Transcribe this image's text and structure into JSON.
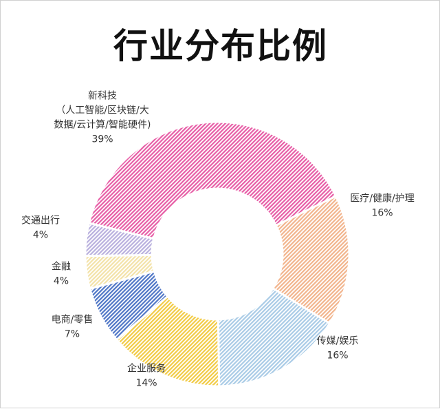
{
  "chart_data": {
    "type": "pie",
    "title": "行业分布比例",
    "donut": true,
    "slices": [
      {
        "label_lines": [
          "医疗/健康/护理"
        ],
        "percent_label": "16%",
        "value": 16,
        "color": "#f2b48c",
        "pattern": "hatch"
      },
      {
        "label_lines": [
          "传媒/娱乐"
        ],
        "percent_label": "16%",
        "value": 16,
        "color": "#a9cbe6",
        "pattern": "hatch"
      },
      {
        "label_lines": [
          "企业服务"
        ],
        "percent_label": "14%",
        "value": 14,
        "color": "#f2cb45",
        "pattern": "hatch"
      },
      {
        "label_lines": [
          "电商/零售"
        ],
        "percent_label": "7%",
        "value": 7,
        "color": "#4f76c6",
        "pattern": "hatch"
      },
      {
        "label_lines": [
          "金融"
        ],
        "percent_label": "4%",
        "value": 4,
        "color": "#f3e2a8",
        "pattern": "hatch"
      },
      {
        "label_lines": [
          "交通出行"
        ],
        "percent_label": "4%",
        "value": 4,
        "color": "#b9b0de",
        "pattern": "hatch"
      },
      {
        "label_lines": [
          "新科技",
          "（人工智能/区块链/大",
          "数据/云计算/智能硬件)"
        ],
        "percent_label": "39%",
        "value": 39,
        "color": "#e75da6",
        "pattern": "hatch"
      }
    ]
  }
}
